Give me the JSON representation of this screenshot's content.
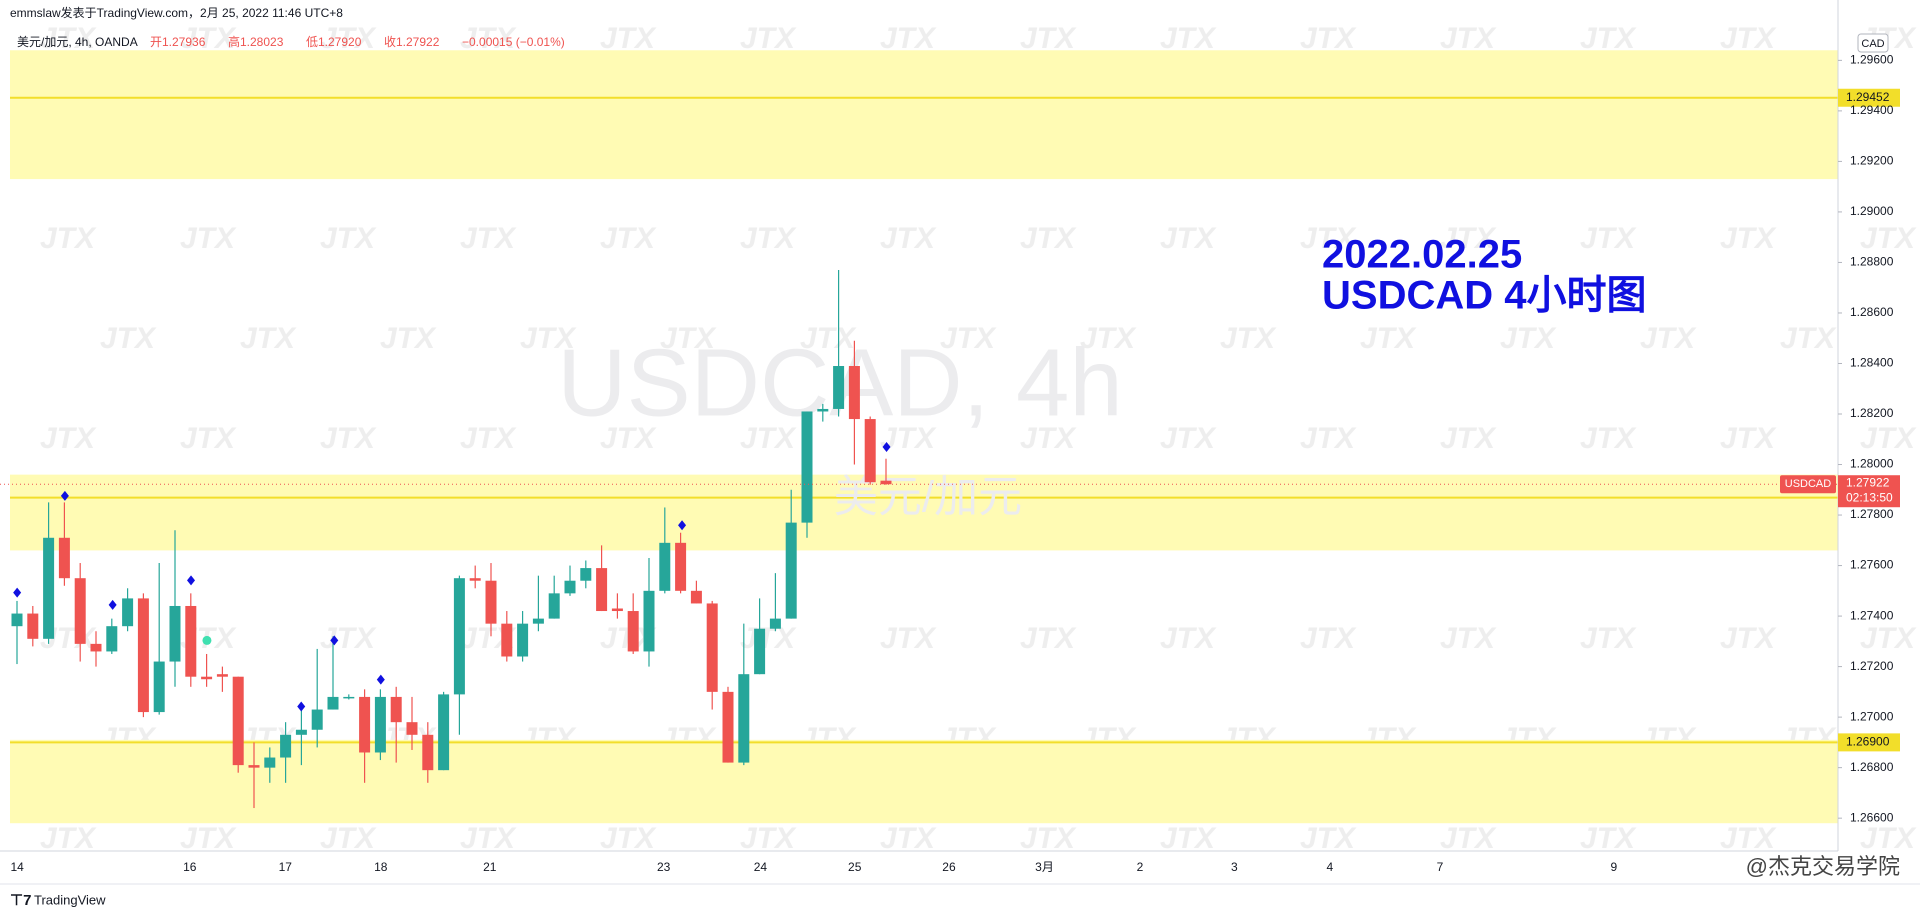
{
  "header": {
    "byline": "emmslaw发表于TradingView.com，2月 25, 2022 11:46 UTC+8",
    "symbol": "美元/加元, 4h, OANDA",
    "ohlc": [
      "开1.27936",
      "高1.28023",
      "低1.27920",
      "收1.27922",
      "−0.00015 (−0.01%)"
    ]
  },
  "footer": {
    "brand": "TradingView",
    "credit": "@杰克交易学院"
  },
  "chart_data": {
    "type": "candlestick",
    "title": "2022.02.25",
    "subtitle": "USDCAD 4小时图",
    "watermark": "USDCAD, 4h",
    "watermark_sub": "美元/加元",
    "brand": "JTX",
    "currency": "CAD",
    "grid": false,
    "x_labels": [
      "14",
      "16",
      "17",
      "18",
      "21",
      "23",
      "24",
      "25",
      "26",
      "3月",
      "2",
      "3",
      "4",
      "7",
      "9"
    ],
    "series": [
      {
        "name": "USDCAD",
        "up_color": "#26a69a",
        "down_color": "#ef5350",
        "open": [
          1.2736,
          1.2741,
          1.2731,
          1.2771,
          1.2755,
          1.2729,
          1.2726,
          1.2736,
          1.2747,
          1.2702,
          1.2722,
          1.2744,
          1.2716,
          1.2717,
          1.2716,
          1.2681,
          1.268,
          1.2684,
          1.2693,
          1.2695,
          1.2703,
          1.2708,
          1.2708,
          1.2686,
          1.2708,
          1.2698,
          1.2693,
          1.2679,
          1.2709,
          1.2755,
          1.2754,
          1.2737,
          1.2724,
          1.2737,
          1.2739,
          1.2749,
          1.2754,
          1.2759,
          1.2743,
          1.2742,
          1.2726,
          1.275,
          1.2769,
          1.275,
          1.2745,
          1.271,
          1.2682,
          1.2717,
          1.2735,
          1.2739,
          1.2777,
          1.2821,
          1.2822,
          1.2839,
          1.2818,
          1.27936
        ],
        "high": [
          1.2746,
          1.2744,
          1.2785,
          1.2785,
          1.2761,
          1.2734,
          1.2739,
          1.2751,
          1.2749,
          1.2761,
          1.2774,
          1.2749,
          1.2725,
          1.272,
          1.2716,
          1.269,
          1.2688,
          1.2698,
          1.2703,
          1.2727,
          1.2732,
          1.2709,
          1.2711,
          1.2711,
          1.2712,
          1.2708,
          1.2698,
          1.271,
          1.2756,
          1.276,
          1.2761,
          1.2742,
          1.2742,
          1.2756,
          1.2756,
          1.276,
          1.2762,
          1.2768,
          1.2749,
          1.2749,
          1.2763,
          1.2783,
          1.2773,
          1.2754,
          1.2746,
          1.2712,
          1.2737,
          1.2747,
          1.2757,
          1.279,
          1.2821,
          1.2824,
          1.2877,
          1.2849,
          1.2819,
          1.28023
        ],
        "low": [
          1.2721,
          1.2728,
          1.2729,
          1.2752,
          1.2722,
          1.272,
          1.2725,
          1.2734,
          1.27,
          1.2701,
          1.2712,
          1.2712,
          1.2712,
          1.271,
          1.2678,
          1.2664,
          1.2674,
          1.2674,
          1.2681,
          1.2688,
          1.2703,
          1.2707,
          1.2674,
          1.2683,
          1.2682,
          1.2687,
          1.2674,
          1.2679,
          1.2693,
          1.2751,
          1.2732,
          1.2722,
          1.2722,
          1.2734,
          1.2739,
          1.2748,
          1.2751,
          1.2742,
          1.2739,
          1.2725,
          1.272,
          1.2749,
          1.2749,
          1.2745,
          1.2703,
          1.2682,
          1.2681,
          1.2717,
          1.2734,
          1.2739,
          1.2771,
          1.2817,
          1.2819,
          1.28,
          1.2792,
          1.2792
        ],
        "close": [
          1.2741,
          1.2731,
          1.2771,
          1.2755,
          1.2729,
          1.2726,
          1.2736,
          1.2747,
          1.2702,
          1.2722,
          1.2744,
          1.2716,
          1.2715,
          1.2716,
          1.2681,
          1.268,
          1.2684,
          1.2693,
          1.2695,
          1.2703,
          1.2708,
          1.2708,
          1.2686,
          1.2708,
          1.2698,
          1.2693,
          1.2679,
          1.2709,
          1.2755,
          1.2754,
          1.2737,
          1.2724,
          1.2737,
          1.2739,
          1.2749,
          1.2754,
          1.2759,
          1.2742,
          1.2742,
          1.2726,
          1.275,
          1.2769,
          1.275,
          1.2745,
          1.271,
          1.2682,
          1.2717,
          1.2735,
          1.2739,
          1.2777,
          1.2821,
          1.2822,
          1.2839,
          1.2818,
          1.2793,
          1.27922
        ]
      }
    ],
    "last_countdown": "02:13:50",
    "zones": [
      {
        "from": 1.2913,
        "to": 1.2964,
        "line": 1.29452
      },
      {
        "from": 1.2766,
        "to": 1.2796,
        "line": 1.27869
      },
      {
        "from": 1.2658,
        "to": 1.2691,
        "line": {
          "value": 1.269,
          "label": "1.26900"
        }
      }
    ],
    "zone_color": "#fffbb4",
    "zone_line_color": "#f2de2a",
    "ylim": [
      1.2647,
      1.2974
    ],
    "yticks": [
      {
        "value": 1.266,
        "label": "1.26600"
      },
      {
        "value": 1.268,
        "label": "1.26800"
      },
      {
        "value": 1.27,
        "label": "1.27000"
      },
      {
        "value": 1.272,
        "label": "1.27200"
      },
      {
        "value": 1.274,
        "label": "1.27400"
      },
      {
        "value": 1.276,
        "label": "1.27600"
      },
      {
        "value": 1.278,
        "label": "1.27800"
      },
      {
        "value": 1.28,
        "label": "1.28000"
      },
      {
        "value": 1.282,
        "label": "1.28200"
      },
      {
        "value": 1.284,
        "label": "1.28400"
      },
      {
        "value": 1.286,
        "label": "1.28600"
      },
      {
        "value": 1.288,
        "label": "1.28800"
      },
      {
        "value": 1.29,
        "label": "1.29000"
      },
      {
        "value": 1.292,
        "label": "1.29200"
      },
      {
        "value": 1.294,
        "label": "1.29400"
      },
      {
        "value": 1.296,
        "label": "1.29600"
      }
    ]
  }
}
